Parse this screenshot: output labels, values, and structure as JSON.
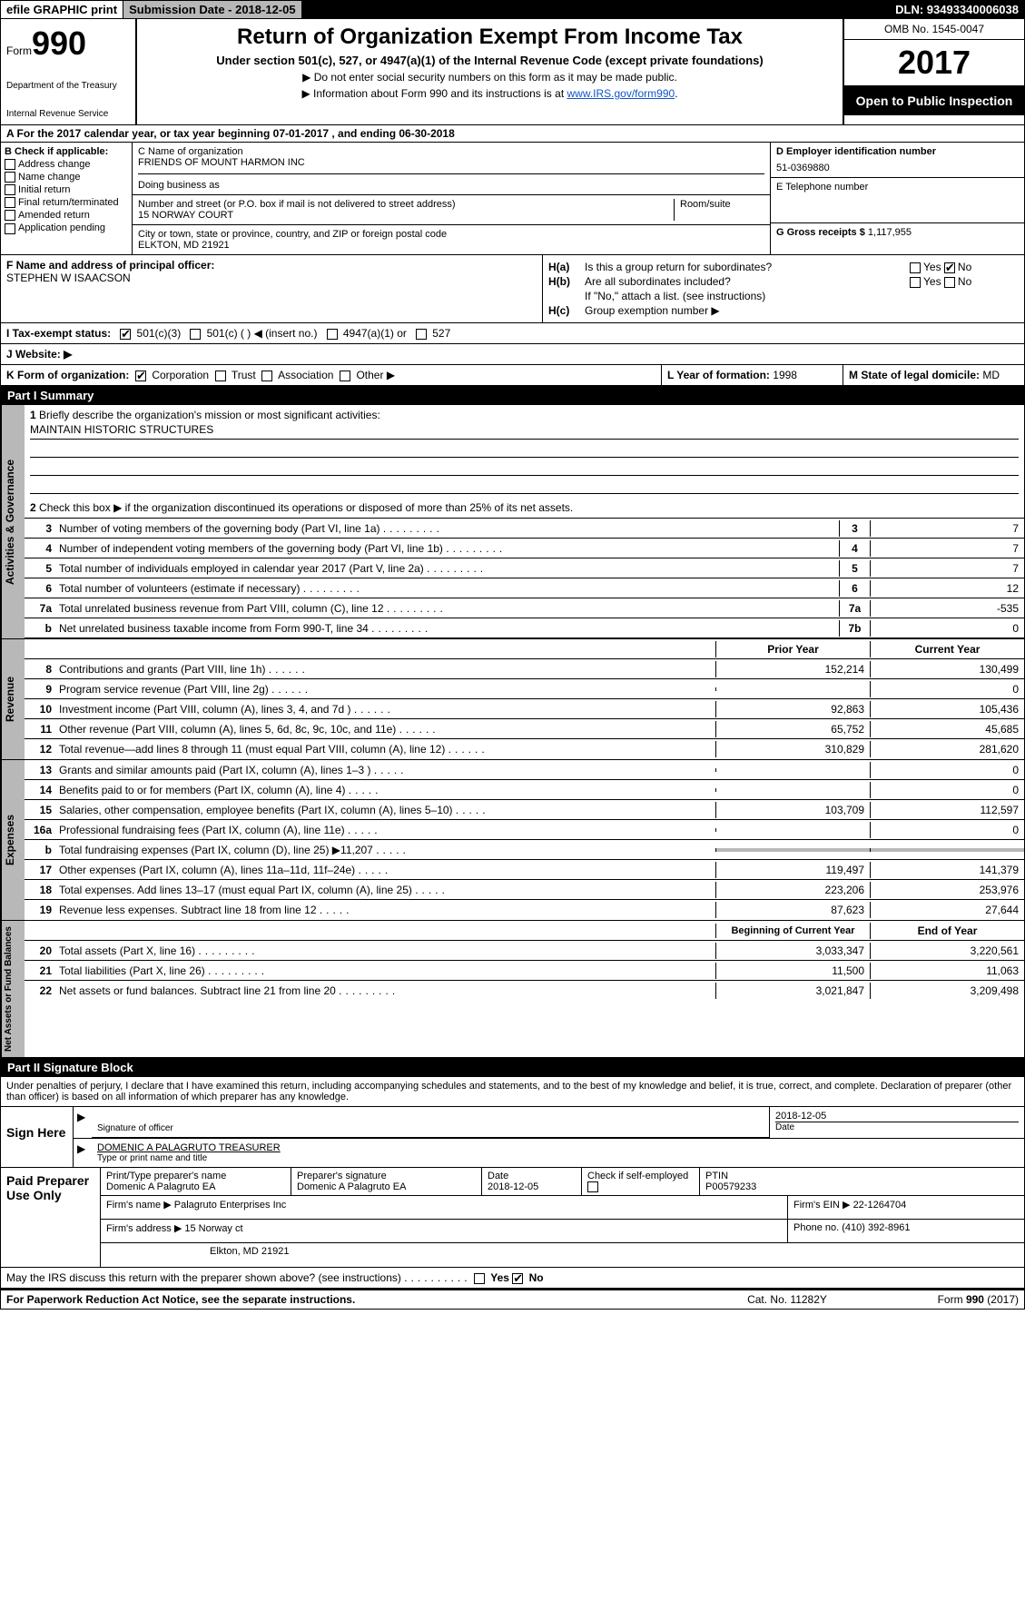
{
  "topbar": {
    "efile": "efile GRAPHIC print",
    "submission": "Submission Date - 2018-12-05",
    "dln": "DLN: 93493340006038"
  },
  "header": {
    "form_word": "Form",
    "form_num": "990",
    "dept": "Department of the Treasury",
    "irs": "Internal Revenue Service",
    "title": "Return of Organization Exempt From Income Tax",
    "subtitle": "Under section 501(c), 527, or 4947(a)(1) of the Internal Revenue Code (except private foundations)",
    "note1": "▶ Do not enter social security numbers on this form as it may be made public.",
    "note2_pre": "▶ Information about Form 990 and its instructions is at ",
    "note2_link": "www.IRS.gov/form990",
    "omb": "OMB No. 1545-0047",
    "year": "2017",
    "open": "Open to Public Inspection"
  },
  "rowA": "A  For the 2017 calendar year, or tax year beginning 07-01-2017   , and ending 06-30-2018",
  "B": {
    "hdr": "B Check if applicable:",
    "items": [
      "Address change",
      "Name change",
      "Initial return",
      "Final return/terminated",
      "Amended return",
      "Application pending"
    ]
  },
  "C": {
    "name_label": "C Name of organization",
    "name": "FRIENDS OF MOUNT HARMON INC",
    "dba_label": "Doing business as",
    "dba": "",
    "street_label": "Number and street (or P.O. box if mail is not delivered to street address)",
    "room_label": "Room/suite",
    "street": "15 NORWAY COURT",
    "city_label": "City or town, state or province, country, and ZIP or foreign postal code",
    "city": "ELKTON, MD  21921"
  },
  "D": {
    "ein_label": "D Employer identification number",
    "ein": "51-0369880",
    "phone_label": "E Telephone number",
    "phone": "",
    "gross_label": "G Gross receipts $",
    "gross": "1,117,955"
  },
  "F": {
    "label": "F  Name and address of principal officer:",
    "name": "STEPHEN W ISAACSON"
  },
  "H": {
    "a_text": "Is this a group return for subordinates?",
    "b_text": "Are all subordinates included?",
    "ifno": "If \"No,\" attach a list. (see instructions)",
    "c_text": "Group exemption number ▶"
  },
  "I": {
    "label": "I  Tax-exempt status:",
    "opts": [
      "501(c)(3)",
      "501(c) (   ) ◀ (insert no.)",
      "4947(a)(1) or",
      "527"
    ]
  },
  "J": "J  Website: ▶",
  "K": {
    "label": "K Form of organization:",
    "opts": [
      "Corporation",
      "Trust",
      "Association",
      "Other ▶"
    ],
    "L_label": "L Year of formation:",
    "L_val": "1998",
    "M_label": "M State of legal domicile:",
    "M_val": "MD"
  },
  "part1": {
    "title": "Part I    Summary",
    "vlabel_gov": "Activities & Governance",
    "vlabel_rev": "Revenue",
    "vlabel_exp": "Expenses",
    "vlabel_net": "Net Assets or Fund Balances",
    "l1": "Briefly describe the organization's mission or most significant activities:",
    "mission": "MAINTAIN HISTORIC STRUCTURES",
    "l2": "Check this box ▶    if the organization discontinued its operations or disposed of more than 25% of its net assets.",
    "lines_gov": [
      {
        "n": "3",
        "t": "Number of voting members of the governing body (Part VI, line 1a)",
        "v": "7"
      },
      {
        "n": "4",
        "t": "Number of independent voting members of the governing body (Part VI, line 1b)",
        "v": "7"
      },
      {
        "n": "5",
        "t": "Total number of individuals employed in calendar year 2017 (Part V, line 2a)",
        "v": "7"
      },
      {
        "n": "6",
        "t": "Total number of volunteers (estimate if necessary)",
        "v": "12"
      },
      {
        "n": "7a",
        "t": "Total unrelated business revenue from Part VIII, column (C), line 12",
        "v": "-535"
      },
      {
        "n": "b",
        "t": "Net unrelated business taxable income from Form 990-T, line 34",
        "cell": "7b",
        "v": "0"
      }
    ],
    "col_prior": "Prior Year",
    "col_current": "Current Year",
    "lines_rev": [
      {
        "n": "8",
        "t": "Contributions and grants (Part VIII, line 1h)",
        "p": "152,214",
        "c": "130,499"
      },
      {
        "n": "9",
        "t": "Program service revenue (Part VIII, line 2g)",
        "p": "",
        "c": "0"
      },
      {
        "n": "10",
        "t": "Investment income (Part VIII, column (A), lines 3, 4, and 7d )",
        "p": "92,863",
        "c": "105,436"
      },
      {
        "n": "11",
        "t": "Other revenue (Part VIII, column (A), lines 5, 6d, 8c, 9c, 10c, and 11e)",
        "p": "65,752",
        "c": "45,685"
      },
      {
        "n": "12",
        "t": "Total revenue—add lines 8 through 11 (must equal Part VIII, column (A), line 12)",
        "p": "310,829",
        "c": "281,620"
      }
    ],
    "lines_exp": [
      {
        "n": "13",
        "t": "Grants and similar amounts paid (Part IX, column (A), lines 1–3 )",
        "p": "",
        "c": "0"
      },
      {
        "n": "14",
        "t": "Benefits paid to or for members (Part IX, column (A), line 4)",
        "p": "",
        "c": "0"
      },
      {
        "n": "15",
        "t": "Salaries, other compensation, employee benefits (Part IX, column (A), lines 5–10)",
        "p": "103,709",
        "c": "112,597"
      },
      {
        "n": "16a",
        "t": "Professional fundraising fees (Part IX, column (A), line 11e)",
        "p": "",
        "c": "0"
      },
      {
        "n": "b",
        "t": "Total fundraising expenses (Part IX, column (D), line 25) ▶11,207",
        "p": "SHADE",
        "c": "SHADE"
      },
      {
        "n": "17",
        "t": "Other expenses (Part IX, column (A), lines 11a–11d, 11f–24e)",
        "p": "119,497",
        "c": "141,379"
      },
      {
        "n": "18",
        "t": "Total expenses. Add lines 13–17 (must equal Part IX, column (A), line 25)",
        "p": "223,206",
        "c": "253,976"
      },
      {
        "n": "19",
        "t": "Revenue less expenses. Subtract line 18 from line 12",
        "p": "87,623",
        "c": "27,644"
      }
    ],
    "col_begin": "Beginning of Current Year",
    "col_end": "End of Year",
    "lines_net": [
      {
        "n": "20",
        "t": "Total assets (Part X, line 16)",
        "p": "3,033,347",
        "c": "3,220,561"
      },
      {
        "n": "21",
        "t": "Total liabilities (Part X, line 26)",
        "p": "11,500",
        "c": "11,063"
      },
      {
        "n": "22",
        "t": "Net assets or fund balances. Subtract line 21 from line 20",
        "p": "3,021,847",
        "c": "3,209,498"
      }
    ]
  },
  "part2": {
    "title": "Part II    Signature Block",
    "perjury": "Under penalties of perjury, I declare that I have examined this return, including accompanying schedules and statements, and to the best of my knowledge and belief, it is true, correct, and complete. Declaration of preparer (other than officer) is based on all information of which preparer has any knowledge.",
    "sign_here": "Sign Here",
    "sig_officer": "Signature of officer",
    "sig_date": "2018-12-05",
    "date_label": "Date",
    "name_title": "DOMENIC A PALAGRUTO TREASURER",
    "name_title_label": "Type or print name and title"
  },
  "preparer": {
    "label": "Paid Preparer Use Only",
    "name_label": "Print/Type preparer's name",
    "name": "Domenic A Palagruto EA",
    "sig_label": "Preparer's signature",
    "sig": "Domenic A Palagruto EA",
    "date_label": "Date",
    "date": "2018-12-05",
    "check_label": "Check        if self-employed",
    "ptin_label": "PTIN",
    "ptin": "P00579233",
    "firm_name_label": "Firm's name      ▶",
    "firm_name": "Palagruto Enterprises Inc",
    "firm_ein_label": "Firm's EIN ▶",
    "firm_ein": "22-1264704",
    "firm_addr_label": "Firm's address ▶",
    "firm_addr1": "15 Norway ct",
    "firm_addr2": "Elkton, MD  21921",
    "phone_label": "Phone no.",
    "phone": "(410) 392-8961"
  },
  "discuss": "May the IRS discuss this return with the preparer shown above? (see instructions)",
  "footer": {
    "left": "For Paperwork Reduction Act Notice, see the separate instructions.",
    "mid": "Cat. No. 11282Y",
    "right": "Form 990 (2017)"
  }
}
